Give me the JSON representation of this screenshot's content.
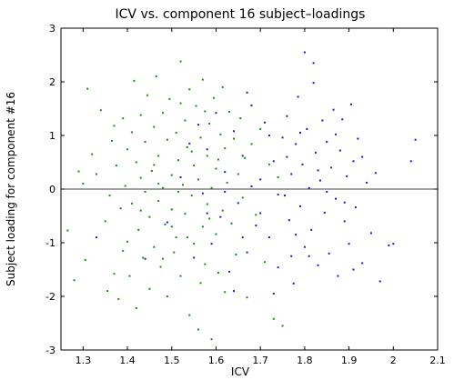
{
  "chart_data": {
    "type": "scatter",
    "title": "ICV vs. component 16 subject–loadings",
    "xlabel": "ICV",
    "ylabel": "Subject loading for component #16",
    "xlim": [
      1.25,
      2.1
    ],
    "ylim": [
      -3,
      3
    ],
    "x_ticks": [
      "1.3",
      "1.4",
      "1.5",
      "1.6",
      "1.7",
      "1.8",
      "1.9",
      "2",
      "2.1"
    ],
    "y_ticks": [
      "-3",
      "-2",
      "-1",
      "0",
      "1",
      "2",
      "3"
    ],
    "x_tick_values": [
      1.3,
      1.4,
      1.5,
      1.6,
      1.7,
      1.8,
      1.9,
      2.0,
      2.1
    ],
    "y_tick_values": [
      -3,
      -2,
      -1,
      0,
      1,
      2,
      3
    ],
    "reference_line_y": 0,
    "grid": false,
    "legend": "none",
    "series": [
      {
        "color": "#1a8a1a",
        "points": [
          [
            1.265,
            -0.77
          ],
          [
            1.28,
            -1.7
          ],
          [
            1.29,
            0.33
          ],
          [
            1.3,
            0.1
          ],
          [
            1.305,
            -1.32
          ],
          [
            1.31,
            1.87
          ],
          [
            1.32,
            0.65
          ],
          [
            1.33,
            0.28
          ],
          [
            1.34,
            1.47
          ],
          [
            1.35,
            -0.6
          ],
          [
            1.355,
            -1.9
          ],
          [
            1.36,
            -0.12
          ],
          [
            1.365,
            0.9
          ],
          [
            1.37,
            1.18
          ],
          [
            1.37,
            -1.58
          ],
          [
            1.375,
            0.44
          ],
          [
            1.38,
            -2.05
          ],
          [
            1.385,
            -0.36
          ],
          [
            1.39,
            1.32
          ],
          [
            1.395,
            0.06
          ],
          [
            1.4,
            -0.98
          ],
          [
            1.4,
            0.74
          ],
          [
            1.405,
            -1.62
          ],
          [
            1.41,
            1.06
          ],
          [
            1.41,
            -0.27
          ],
          [
            1.415,
            2.02
          ],
          [
            1.42,
            0.5
          ],
          [
            1.42,
            -2.22
          ],
          [
            1.425,
            -0.76
          ],
          [
            1.43,
            1.38
          ],
          [
            1.43,
            0.21
          ],
          [
            1.435,
            -1.28
          ],
          [
            1.44,
            0.88
          ],
          [
            1.44,
            -0.05
          ],
          [
            1.445,
            1.75
          ],
          [
            1.45,
            -0.52
          ],
          [
            1.45,
            -1.86
          ],
          [
            1.455,
            0.34
          ],
          [
            1.46,
            1.16
          ],
          [
            1.46,
            -1.08
          ],
          [
            1.465,
            2.1
          ],
          [
            1.47,
            -0.22
          ],
          [
            1.47,
            0.62
          ],
          [
            1.475,
            -1.45
          ],
          [
            1.48,
            1.42
          ],
          [
            1.48,
            0.02
          ],
          [
            1.485,
            -0.66
          ],
          [
            1.49,
            0.92
          ],
          [
            1.49,
            -2.0
          ],
          [
            1.495,
            1.68
          ],
          [
            1.5,
            -0.38
          ],
          [
            1.5,
            0.26
          ],
          [
            1.505,
            -1.18
          ],
          [
            1.51,
            1.05
          ],
          [
            1.51,
            -0.9
          ],
          [
            1.515,
            0.54
          ],
          [
            1.52,
            2.38
          ],
          [
            1.52,
            -1.62
          ],
          [
            1.525,
            0.08
          ],
          [
            1.53,
            1.28
          ],
          [
            1.53,
            -0.46
          ],
          [
            1.535,
            0.78
          ],
          [
            1.54,
            -2.35
          ],
          [
            1.54,
            1.86
          ],
          [
            1.545,
            -0.12
          ],
          [
            1.55,
            0.44
          ],
          [
            1.55,
            -1.02
          ],
          [
            1.555,
            1.55
          ],
          [
            1.56,
            -2.62
          ],
          [
            1.56,
            0.18
          ],
          [
            1.565,
            0.96
          ],
          [
            1.57,
            -0.7
          ],
          [
            1.57,
            2.04
          ],
          [
            1.575,
            -1.4
          ],
          [
            1.58,
            0.62
          ],
          [
            1.58,
            -0.28
          ],
          [
            1.585,
            1.22
          ],
          [
            1.59,
            -2.8
          ],
          [
            1.59,
            0.02
          ],
          [
            1.595,
            1.7
          ],
          [
            1.6,
            -0.84
          ],
          [
            1.6,
            0.38
          ],
          [
            1.605,
            -1.56
          ],
          [
            1.61,
            1.02
          ],
          [
            1.615,
            -0.4
          ],
          [
            1.62,
            0.76
          ],
          [
            1.62,
            -1.92
          ],
          [
            1.625,
            0.12
          ],
          [
            1.63,
            1.44
          ],
          [
            1.635,
            -0.64
          ],
          [
            1.64,
            0.94
          ],
          [
            1.645,
            -1.22
          ],
          [
            1.65,
            0.28
          ],
          [
            1.655,
            1.32
          ],
          [
            1.66,
            -0.16
          ],
          [
            1.665,
            0.58
          ],
          [
            1.67,
            -2.02
          ],
          [
            1.68,
            0.84
          ],
          [
            1.69,
            -0.48
          ],
          [
            1.7,
            1.12
          ],
          [
            1.71,
            -1.36
          ],
          [
            1.72,
            0.46
          ],
          [
            1.73,
            -2.42
          ],
          [
            1.74,
            0.22
          ],
          [
            1.75,
            -2.55
          ],
          [
            1.47,
            0.1
          ],
          [
            1.48,
            -1.3
          ],
          [
            1.52,
            1.6
          ],
          [
            1.535,
            -0.9
          ],
          [
            1.545,
            0.7
          ],
          [
            1.575,
            1.45
          ],
          [
            1.585,
            -0.55
          ],
          [
            1.605,
            0.55
          ],
          [
            1.615,
            1.9
          ],
          [
            1.46,
            0.45
          ],
          [
            1.5,
            -0.7
          ],
          [
            1.39,
            -1.15
          ],
          [
            1.43,
            -0.4
          ],
          [
            1.515,
            -0.05
          ],
          [
            1.565,
            -1.75
          ]
        ]
      },
      {
        "color": "#1a1ad0",
        "points": [
          [
            1.33,
            -0.9
          ],
          [
            1.44,
            -1.3
          ],
          [
            1.49,
            -0.62
          ],
          [
            1.52,
            0.22
          ],
          [
            1.55,
            -1.28
          ],
          [
            1.56,
            1.2
          ],
          [
            1.57,
            -0.08
          ],
          [
            1.58,
            0.74
          ],
          [
            1.59,
            -1.02
          ],
          [
            1.6,
            1.42
          ],
          [
            1.61,
            -0.52
          ],
          [
            1.62,
            0.32
          ],
          [
            1.63,
            -1.54
          ],
          [
            1.64,
            1.08
          ],
          [
            1.65,
            -0.26
          ],
          [
            1.66,
            0.62
          ],
          [
            1.67,
            -1.18
          ],
          [
            1.68,
            1.56
          ],
          [
            1.69,
            -0.68
          ],
          [
            1.7,
            0.18
          ],
          [
            1.71,
            1.24
          ],
          [
            1.72,
            -0.9
          ],
          [
            1.73,
            0.52
          ],
          [
            1.74,
            -1.46
          ],
          [
            1.75,
            0.96
          ],
          [
            1.755,
            -0.12
          ],
          [
            1.76,
            1.36
          ],
          [
            1.765,
            -0.58
          ],
          [
            1.77,
            0.28
          ],
          [
            1.775,
            -1.76
          ],
          [
            1.78,
            0.84
          ],
          [
            1.785,
            1.72
          ],
          [
            1.79,
            -0.32
          ],
          [
            1.795,
            0.46
          ],
          [
            1.8,
            2.55
          ],
          [
            1.8,
            -1.08
          ],
          [
            1.805,
            1.12
          ],
          [
            1.81,
            0.02
          ],
          [
            1.815,
            -0.76
          ],
          [
            1.82,
            1.98
          ],
          [
            1.825,
            0.68
          ],
          [
            1.83,
            -1.42
          ],
          [
            1.835,
            0.16
          ],
          [
            1.84,
            1.28
          ],
          [
            1.845,
            -0.44
          ],
          [
            1.85,
            0.88
          ],
          [
            1.855,
            -1.2
          ],
          [
            1.86,
            0.4
          ],
          [
            1.865,
            1.48
          ],
          [
            1.87,
            -0.18
          ],
          [
            1.875,
            -1.62
          ],
          [
            1.88,
            0.72
          ],
          [
            1.885,
            1.3
          ],
          [
            1.89,
            -0.6
          ],
          [
            1.895,
            0.24
          ],
          [
            1.9,
            -1.02
          ],
          [
            1.905,
            1.58
          ],
          [
            1.91,
            0.52
          ],
          [
            1.915,
            -0.34
          ],
          [
            1.92,
            0.94
          ],
          [
            1.93,
            -1.38
          ],
          [
            1.94,
            0.12
          ],
          [
            1.95,
            -0.82
          ],
          [
            1.96,
            0.3
          ],
          [
            1.97,
            -1.72
          ],
          [
            1.99,
            -1.05
          ],
          [
            2.0,
            -1.02
          ],
          [
            2.05,
            0.92
          ],
          [
            2.04,
            0.52
          ],
          [
            1.66,
            -0.9
          ],
          [
            1.68,
            0.05
          ],
          [
            1.7,
            -0.45
          ],
          [
            1.72,
            1.0
          ],
          [
            1.74,
            -0.1
          ],
          [
            1.76,
            0.6
          ],
          [
            1.78,
            -0.85
          ],
          [
            1.79,
            1.05
          ],
          [
            1.81,
            -1.25
          ],
          [
            1.83,
            0.35
          ],
          [
            1.85,
            -0.05
          ],
          [
            1.87,
            1.02
          ],
          [
            1.89,
            -0.25
          ],
          [
            1.91,
            -1.5
          ],
          [
            1.93,
            0.6
          ],
          [
            1.82,
            2.35
          ],
          [
            1.64,
            -1.9
          ],
          [
            1.67,
            1.8
          ],
          [
            1.73,
            -1.95
          ],
          [
            1.77,
            -1.25
          ],
          [
            1.62,
            -0.05
          ],
          [
            1.58,
            -0.45
          ],
          [
            1.54,
            0.85
          ]
        ]
      }
    ]
  }
}
